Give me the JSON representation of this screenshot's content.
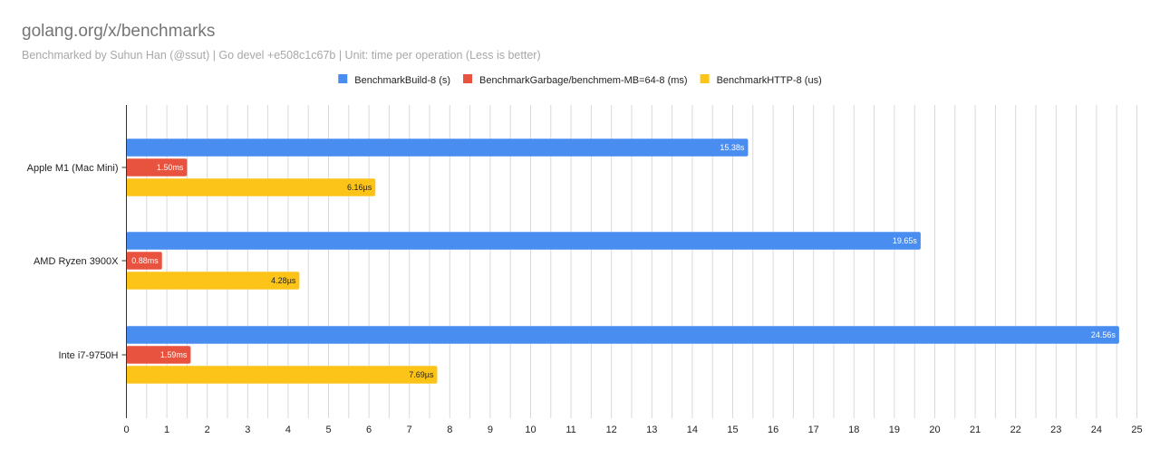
{
  "chart_data": {
    "type": "bar",
    "orientation": "horizontal",
    "title": "golang.org/x/benchmarks",
    "subtitle": "Benchmarked by Suhun Han (@ssut) | Go devel +e508c1c67b | Unit: time per operation (Less is better)",
    "categories": [
      "Apple M1 (Mac Mini)",
      "AMD Ryzen 3900X",
      "Inte i7-9750H"
    ],
    "series": [
      {
        "name": "BenchmarkBuild-8 (s)",
        "color": "#4a8df0",
        "label_color": "#ffffff",
        "values": [
          15.38,
          19.65,
          24.56
        ],
        "labels": [
          "15.38s",
          "19.65s",
          "24.56s"
        ]
      },
      {
        "name": "BenchmarkGarbage/benchmem-MB=64-8 (ms)",
        "color": "#e8533f",
        "label_color": "#ffffff",
        "values": [
          1.5,
          0.88,
          1.59
        ],
        "labels": [
          "1.50ms",
          "0.88ms",
          "1.59ms"
        ]
      },
      {
        "name": "BenchmarkHTTP-8 (us)",
        "color": "#fcc419",
        "label_color": "#222222",
        "values": [
          6.16,
          4.28,
          7.69
        ],
        "labels": [
          "6.16µs",
          "4.28µs",
          "7.69µs"
        ]
      }
    ],
    "xlim": [
      0,
      25
    ],
    "x_ticks": [
      0,
      1,
      2,
      3,
      4,
      5,
      6,
      7,
      8,
      9,
      10,
      11,
      12,
      13,
      14,
      15,
      16,
      17,
      18,
      19,
      20,
      21,
      22,
      23,
      24,
      25
    ],
    "x_minor_step": 0.5,
    "grid": true,
    "legend_position": "top-center",
    "gridline_color": "#d9d9d9",
    "axis_color": "#333333"
  }
}
